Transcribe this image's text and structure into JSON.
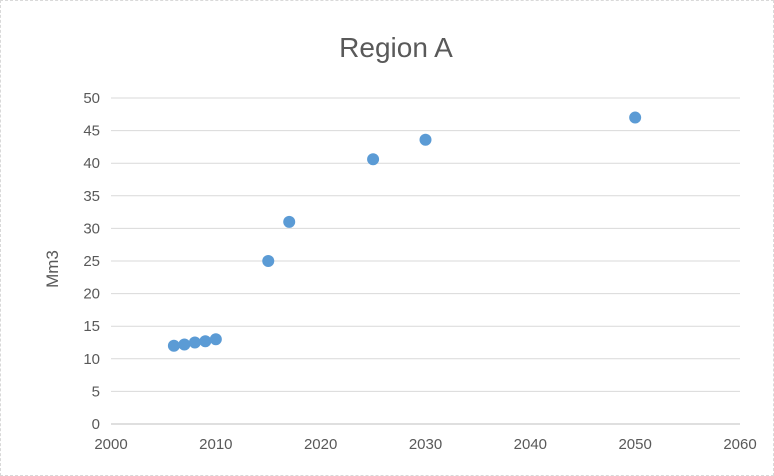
{
  "chart_data": {
    "type": "scatter",
    "title": "Region A",
    "xlabel": "",
    "ylabel": "Mm3",
    "xlim": [
      2000,
      2060
    ],
    "ylim": [
      0,
      50
    ],
    "x_ticks": [
      2000,
      2010,
      2020,
      2030,
      2040,
      2050,
      2060
    ],
    "y_ticks": [
      0,
      5,
      10,
      15,
      20,
      25,
      30,
      35,
      40,
      45,
      50
    ],
    "grid": "horizontal",
    "legend": "none",
    "marker_color": "#5b9bd5",
    "series": [
      {
        "points": [
          {
            "x": 2006,
            "y": 12.0
          },
          {
            "x": 2007,
            "y": 12.2
          },
          {
            "x": 2008,
            "y": 12.5
          },
          {
            "x": 2009,
            "y": 12.7
          },
          {
            "x": 2010,
            "y": 13.0
          },
          {
            "x": 2015,
            "y": 25.0
          },
          {
            "x": 2017,
            "y": 31.0
          },
          {
            "x": 2025,
            "y": 40.6
          },
          {
            "x": 2030,
            "y": 43.6
          },
          {
            "x": 2050,
            "y": 47.0
          }
        ]
      }
    ]
  }
}
